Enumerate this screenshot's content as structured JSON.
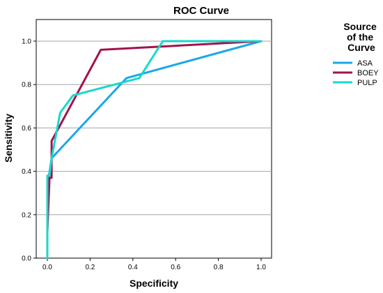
{
  "chart_data": {
    "type": "line",
    "title": "ROC Curve",
    "xlabel": "Specificity",
    "ylabel": "Sensitivity",
    "xlim": [
      0,
      1.0
    ],
    "ylim": [
      0,
      1.0
    ],
    "xticks": [
      "0.0",
      "0.2",
      "0.4",
      "0.6",
      "0.8",
      "1.0"
    ],
    "yticks": [
      "0.0",
      "0.2",
      "0.4",
      "0.6",
      "0.8",
      "1.0"
    ],
    "grid": "horizontal",
    "legend": {
      "title_lines": [
        "Source",
        "of the",
        "Curve"
      ],
      "placement": "right"
    },
    "series": [
      {
        "name": "ASA",
        "color": "#1aa7e8",
        "points": [
          [
            0.0,
            0.0
          ],
          [
            0.0,
            0.33
          ],
          [
            0.02,
            0.46
          ],
          [
            0.37,
            0.83
          ],
          [
            1.0,
            1.0
          ]
        ]
      },
      {
        "name": "BOEY",
        "color": "#a3124e",
        "points": [
          [
            0.0,
            0.0
          ],
          [
            0.0,
            0.12
          ],
          [
            0.01,
            0.37
          ],
          [
            0.02,
            0.37
          ],
          [
            0.02,
            0.54
          ],
          [
            0.25,
            0.96
          ],
          [
            1.0,
            1.0
          ]
        ]
      },
      {
        "name": "PULP",
        "color": "#18d8cc",
        "points": [
          [
            0.0,
            0.0
          ],
          [
            0.0,
            0.38
          ],
          [
            0.01,
            0.38
          ],
          [
            0.02,
            0.46
          ],
          [
            0.06,
            0.67
          ],
          [
            0.12,
            0.75
          ],
          [
            0.43,
            0.83
          ],
          [
            0.54,
            1.0
          ],
          [
            1.0,
            1.0
          ]
        ]
      }
    ]
  }
}
